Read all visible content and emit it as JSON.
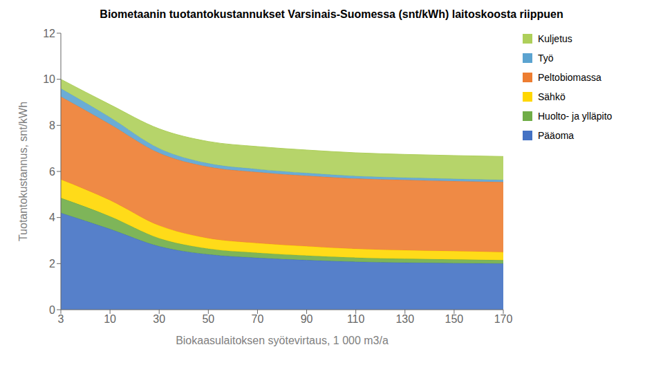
{
  "chart_data": {
    "type": "area",
    "title": "Biometaanin tuotantokustannukset Varsinais-Suomessa (snt/kWh) laitoskoosta riippuen",
    "xlabel": "Biokaasulaitoksen syötevirtaus, 1 000 m3/a",
    "ylabel": "Tuotantokustannus, snt/kWh",
    "categories": [
      "3",
      "10",
      "30",
      "50",
      "70",
      "90",
      "110",
      "130",
      "150",
      "170"
    ],
    "series": [
      {
        "name": "Pääoma",
        "color": "#4472C4",
        "values": [
          4.2,
          3.5,
          2.75,
          2.4,
          2.25,
          2.15,
          2.08,
          2.04,
          2.02,
          2.0
        ]
      },
      {
        "name": "Huolto- ja ylläpito",
        "color": "#70AD47",
        "values": [
          0.65,
          0.55,
          0.35,
          0.25,
          0.22,
          0.2,
          0.18,
          0.17,
          0.16,
          0.15
        ]
      },
      {
        "name": "Sähkö",
        "color": "#FFD700",
        "values": [
          0.8,
          0.7,
          0.55,
          0.45,
          0.42,
          0.4,
          0.38,
          0.37,
          0.36,
          0.35
        ]
      },
      {
        "name": "Peltobiomassa",
        "color": "#ED7D31",
        "values": [
          3.6,
          3.3,
          3.15,
          3.1,
          3.08,
          3.06,
          3.05,
          3.05,
          3.04,
          3.04
        ]
      },
      {
        "name": "Työ",
        "color": "#5BA3D0",
        "values": [
          0.35,
          0.3,
          0.2,
          0.15,
          0.13,
          0.12,
          0.11,
          0.1,
          0.1,
          0.09
        ]
      },
      {
        "name": "Kuljetus",
        "color": "#AECF5A",
        "values": [
          0.4,
          0.55,
          0.85,
          0.95,
          0.98,
          1.0,
          1.01,
          1.01,
          1.01,
          1.02
        ]
      }
    ],
    "stacked": true,
    "ylim": [
      0,
      12
    ],
    "yticks": [
      0,
      2,
      4,
      6,
      8,
      10,
      12
    ],
    "grid": false,
    "legend": "right"
  }
}
